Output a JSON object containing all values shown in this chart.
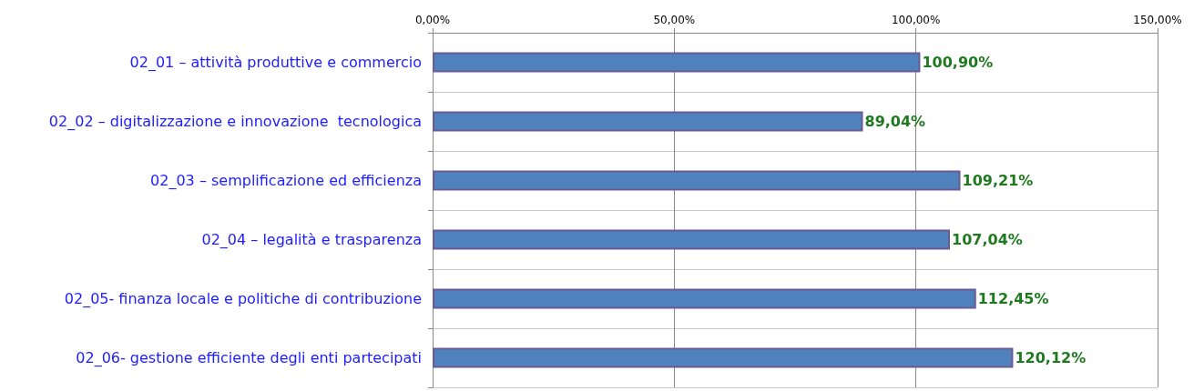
{
  "chart_data": {
    "type": "bar",
    "orientation": "horizontal",
    "categories": [
      "02_01 – attività produttive e commercio",
      "02_02 – digitalizzazione e innovazione  tecnologica",
      "02_03 – semplificazione ed efficienza",
      "02_04 – legalità e trasparenza",
      "02_05- finanza locale e politiche di contribuzione",
      "02_06- gestione efficiente degli enti partecipati"
    ],
    "values": [
      100.9,
      89.04,
      109.21,
      107.04,
      112.45,
      120.12
    ],
    "value_labels": [
      "100,90%",
      "89,04%",
      "109,21%",
      "107,04%",
      "112,45%",
      "120,12%"
    ],
    "color": "#4f81bd",
    "xlim": [
      0,
      150
    ],
    "xticks": [
      {
        "value": 0,
        "label": "0,00%"
      },
      {
        "value": 50,
        "label": "50,00%"
      },
      {
        "value": 100,
        "label": "100,00%"
      },
      {
        "value": 150,
        "label": "150,00%"
      }
    ],
    "grid": true
  }
}
